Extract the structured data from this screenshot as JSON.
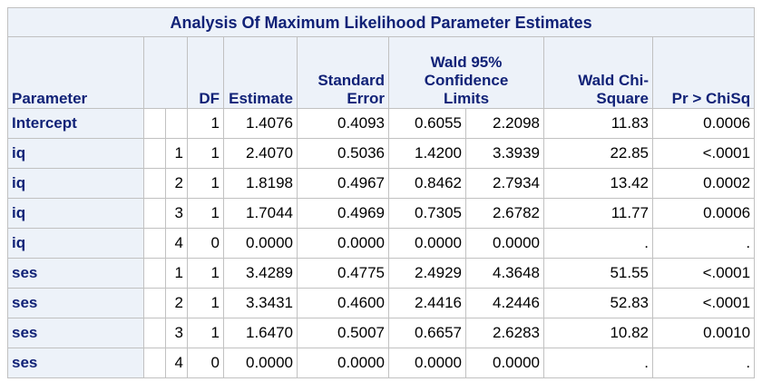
{
  "title": "Analysis Of Maximum Likelihood Parameter Estimates",
  "headers": {
    "parameter": "Parameter",
    "level": "",
    "df": "DF",
    "estimate": "Estimate",
    "std_error": [
      "Standard",
      "Error"
    ],
    "wald_ci": [
      "Wald 95%",
      "Confidence",
      "Limits"
    ],
    "wald_chisq": [
      "Wald Chi-",
      "Square"
    ],
    "pr_chisq": "Pr > ChiSq"
  },
  "rows": [
    {
      "param": "Intercept",
      "level": "",
      "df": "1",
      "estimate": "1.4076",
      "se": "0.4093",
      "lower": "0.6055",
      "upper": "2.2098",
      "chisq": "11.83",
      "p": "0.0006"
    },
    {
      "param": "iq",
      "level": "1",
      "df": "1",
      "estimate": "2.4070",
      "se": "0.5036",
      "lower": "1.4200",
      "upper": "3.3939",
      "chisq": "22.85",
      "p": "<.0001"
    },
    {
      "param": "iq",
      "level": "2",
      "df": "1",
      "estimate": "1.8198",
      "se": "0.4967",
      "lower": "0.8462",
      "upper": "2.7934",
      "chisq": "13.42",
      "p": "0.0002"
    },
    {
      "param": "iq",
      "level": "3",
      "df": "1",
      "estimate": "1.7044",
      "se": "0.4969",
      "lower": "0.7305",
      "upper": "2.6782",
      "chisq": "11.77",
      "p": "0.0006"
    },
    {
      "param": "iq",
      "level": "4",
      "df": "0",
      "estimate": "0.0000",
      "se": "0.0000",
      "lower": "0.0000",
      "upper": "0.0000",
      "chisq": ".",
      "p": "."
    },
    {
      "param": "ses",
      "level": "1",
      "df": "1",
      "estimate": "3.4289",
      "se": "0.4775",
      "lower": "2.4929",
      "upper": "4.3648",
      "chisq": "51.55",
      "p": "<.0001"
    },
    {
      "param": "ses",
      "level": "2",
      "df": "1",
      "estimate": "3.3431",
      "se": "0.4600",
      "lower": "2.4416",
      "upper": "4.2446",
      "chisq": "52.83",
      "p": "<.0001"
    },
    {
      "param": "ses",
      "level": "3",
      "df": "1",
      "estimate": "1.6470",
      "se": "0.5007",
      "lower": "0.6657",
      "upper": "2.6283",
      "chisq": "10.82",
      "p": "0.0010"
    },
    {
      "param": "ses",
      "level": "4",
      "df": "0",
      "estimate": "0.0000",
      "se": "0.0000",
      "lower": "0.0000",
      "upper": "0.0000",
      "chisq": ".",
      "p": "."
    }
  ]
}
